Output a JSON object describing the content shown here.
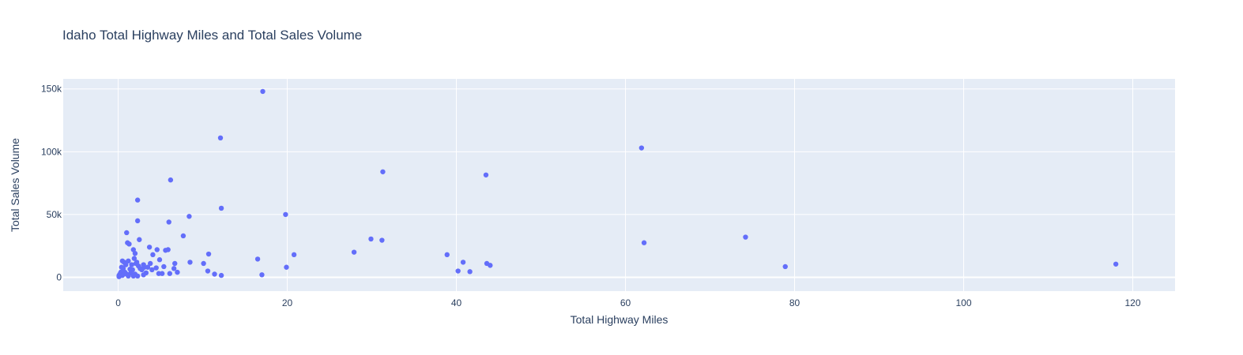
{
  "chart_data": {
    "type": "scatter",
    "title": "Idaho Total Highway Miles and Total Sales Volume",
    "xlabel": "Total Highway Miles",
    "ylabel": "Total Sales Volume",
    "xlim": [
      -6.5,
      125
    ],
    "ylim": [
      -11000,
      158000
    ],
    "x_ticks": [
      0,
      20,
      40,
      60,
      80,
      100,
      120
    ],
    "x_tick_labels": [
      "0",
      "20",
      "40",
      "60",
      "80",
      "100",
      "120"
    ],
    "y_ticks": [
      0,
      50000,
      100000,
      150000
    ],
    "y_tick_labels": [
      "0",
      "50k",
      "100k",
      "150k"
    ],
    "grid": true,
    "colors": {
      "marker": "#636efa",
      "plot_bg": "#e5ecf6",
      "grid": "#ffffff",
      "text": "#2a3f5f"
    },
    "series": [
      {
        "x": [
          17.1,
          12.1,
          61.9,
          31.3,
          43.5,
          6.2,
          2.3,
          12.2,
          19.8,
          8.4,
          2.3,
          6.0,
          1.0,
          7.7,
          74.2,
          2.5,
          31.2,
          29.9,
          1.1,
          1.3,
          62.2,
          3.7,
          5.9,
          4.6,
          5.6,
          1.8,
          27.9,
          20.8,
          2.0,
          10.7,
          38.9,
          4.1,
          16.5,
          0.5,
          1.9,
          4.9,
          2.2,
          0.7,
          1.2,
          10.1,
          40.8,
          8.5,
          6.7,
          3.8,
          3.0,
          0.9,
          1.6,
          2.1,
          43.6,
          44.0,
          2.4,
          3.1,
          5.4,
          3.5,
          4.5,
          19.9,
          78.9,
          0.4,
          0.6,
          6.6,
          1.4,
          2.6,
          4.0,
          1.7,
          2.8,
          10.6,
          40.2,
          41.6,
          0.3,
          0.8,
          1.5,
          3.3,
          7.0,
          4.8,
          5.2,
          6.1,
          11.4,
          0.2,
          1.0,
          2.0,
          3.0,
          17.0,
          12.2,
          0.1,
          0.5,
          1.2,
          1.8,
          2.3,
          0.1,
          118.0
        ],
        "y": [
          148000,
          111000,
          103000,
          84000,
          81500,
          77500,
          61500,
          55000,
          50000,
          48500,
          45000,
          44000,
          35500,
          33000,
          32000,
          30000,
          29500,
          30500,
          27500,
          26500,
          27500,
          24000,
          22000,
          22000,
          21500,
          22000,
          20000,
          18000,
          19000,
          18500,
          18000,
          18000,
          14500,
          13000,
          15000,
          14000,
          12000,
          12000,
          13000,
          11000,
          12000,
          12000,
          11000,
          11000,
          10000,
          10000,
          10000,
          11000,
          11000,
          9500,
          9000,
          8000,
          8500,
          8000,
          7500,
          8000,
          8500,
          8000,
          7000,
          7000,
          6500,
          7000,
          6000,
          6000,
          6000,
          5000,
          5000,
          4500,
          4000,
          4000,
          3500,
          3500,
          4000,
          3000,
          3000,
          3000,
          2500,
          2500,
          2500,
          2500,
          2000,
          2000,
          1500,
          1500,
          1500,
          1000,
          1000,
          1000,
          500,
          10500
        ]
      }
    ]
  }
}
